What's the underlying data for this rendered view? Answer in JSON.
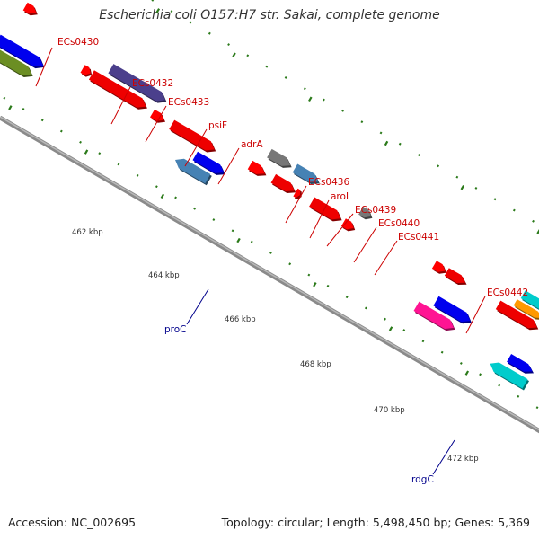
{
  "title": "Escherichia coli O157:H7 str. Sakai, complete genome",
  "footer": {
    "accession": "Accession: NC_002695",
    "summary": "Topology: circular; Length: 5,498,450 bp; Genes: 5,369"
  },
  "colors": {
    "backbone": "#8a8a8a",
    "tick": "#2b7a1a",
    "ruler_label": "#333333",
    "gene_label_plus": "#cc0000",
    "gene_label_minus": "#00008b"
  },
  "ruler": {
    "labels": [
      "462 kbp",
      "464 kbp",
      "466 kbp",
      "468 kbp",
      "470 kbp",
      "472 kbp"
    ]
  },
  "gene_labels": [
    {
      "text": "ECs0430",
      "strand": "plus"
    },
    {
      "text": "ECs0432",
      "strand": "plus"
    },
    {
      "text": "ECs0433",
      "strand": "plus"
    },
    {
      "text": "psiF",
      "strand": "plus"
    },
    {
      "text": "adrA",
      "strand": "plus"
    },
    {
      "text": "ECs0436",
      "strand": "plus"
    },
    {
      "text": "aroL",
      "strand": "plus"
    },
    {
      "text": "ECs0439",
      "strand": "plus"
    },
    {
      "text": "ECs0440",
      "strand": "plus"
    },
    {
      "text": "ECs0441",
      "strand": "plus"
    },
    {
      "text": "ECs0442",
      "strand": "plus"
    },
    {
      "text": "proC",
      "strand": "minus"
    },
    {
      "text": "rdgC",
      "strand": "minus"
    }
  ]
}
